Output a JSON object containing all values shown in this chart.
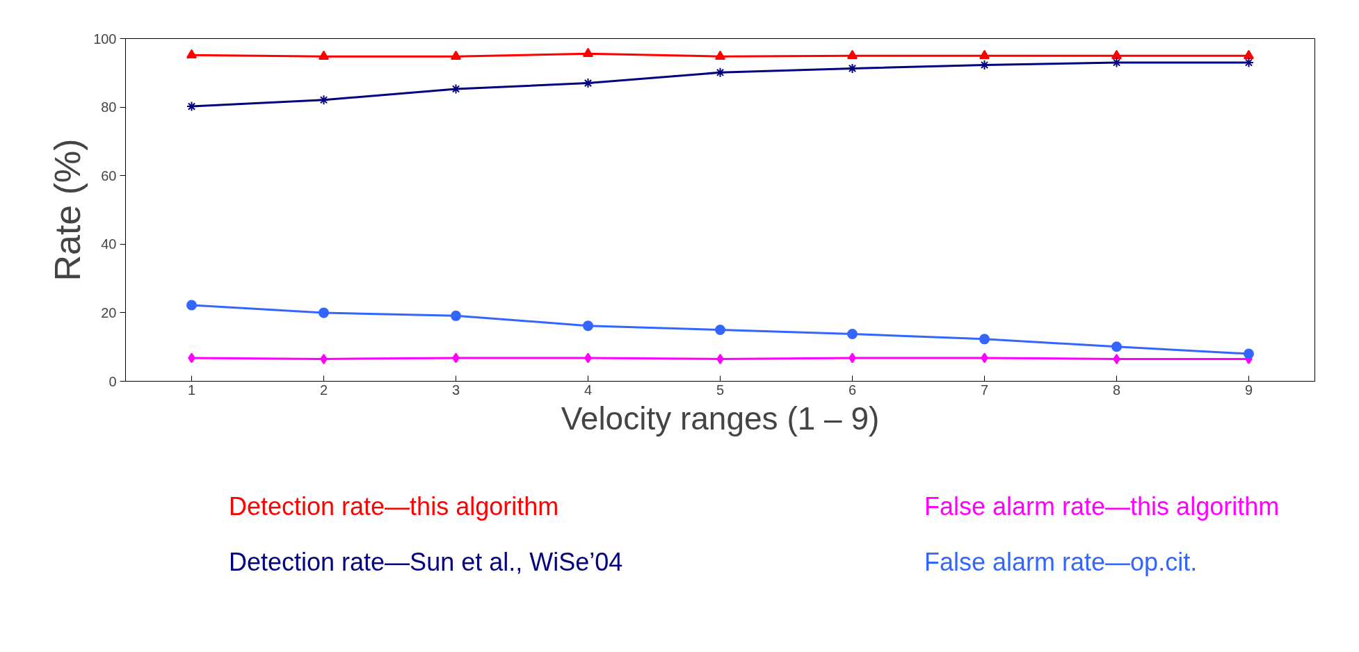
{
  "chart_data": {
    "type": "line",
    "xlabel": "Velocity ranges (1 – 9)",
    "ylabel": "Rate (%)",
    "categories": [
      "1",
      "2",
      "3",
      "4",
      "5",
      "6",
      "7",
      "8",
      "9"
    ],
    "ylim": [
      0,
      100
    ],
    "yticks": [
      0,
      20,
      40,
      60,
      80,
      100
    ],
    "grid": false,
    "legend": "bottom",
    "series": [
      {
        "name": "Detection rate—this algorithm",
        "color": "#ff0000",
        "marker": "triangle",
        "values": [
          95.2,
          94.8,
          94.8,
          95.6,
          94.8,
          95.0,
          95.0,
          95.0,
          95.0
        ]
      },
      {
        "name": "False alarm rate—this algorithm",
        "color": "#ff00ff",
        "marker": "diamond",
        "values": [
          6.8,
          6.5,
          6.8,
          6.8,
          6.5,
          6.8,
          6.8,
          6.5,
          6.5
        ]
      },
      {
        "name": "Detection rate—Sun et al., WiSe’04",
        "color": "#000080",
        "marker": "cross",
        "values": [
          80.2,
          82.1,
          85.3,
          87.0,
          90.1,
          91.3,
          92.3,
          93.0,
          93.0
        ]
      },
      {
        "name": "False alarm rate—op.cit.",
        "color": "#3366ff",
        "marker": "circle",
        "values": [
          22.2,
          20.0,
          19.1,
          16.2,
          15.0,
          13.8,
          12.3,
          10.1,
          8.0
        ]
      }
    ]
  }
}
